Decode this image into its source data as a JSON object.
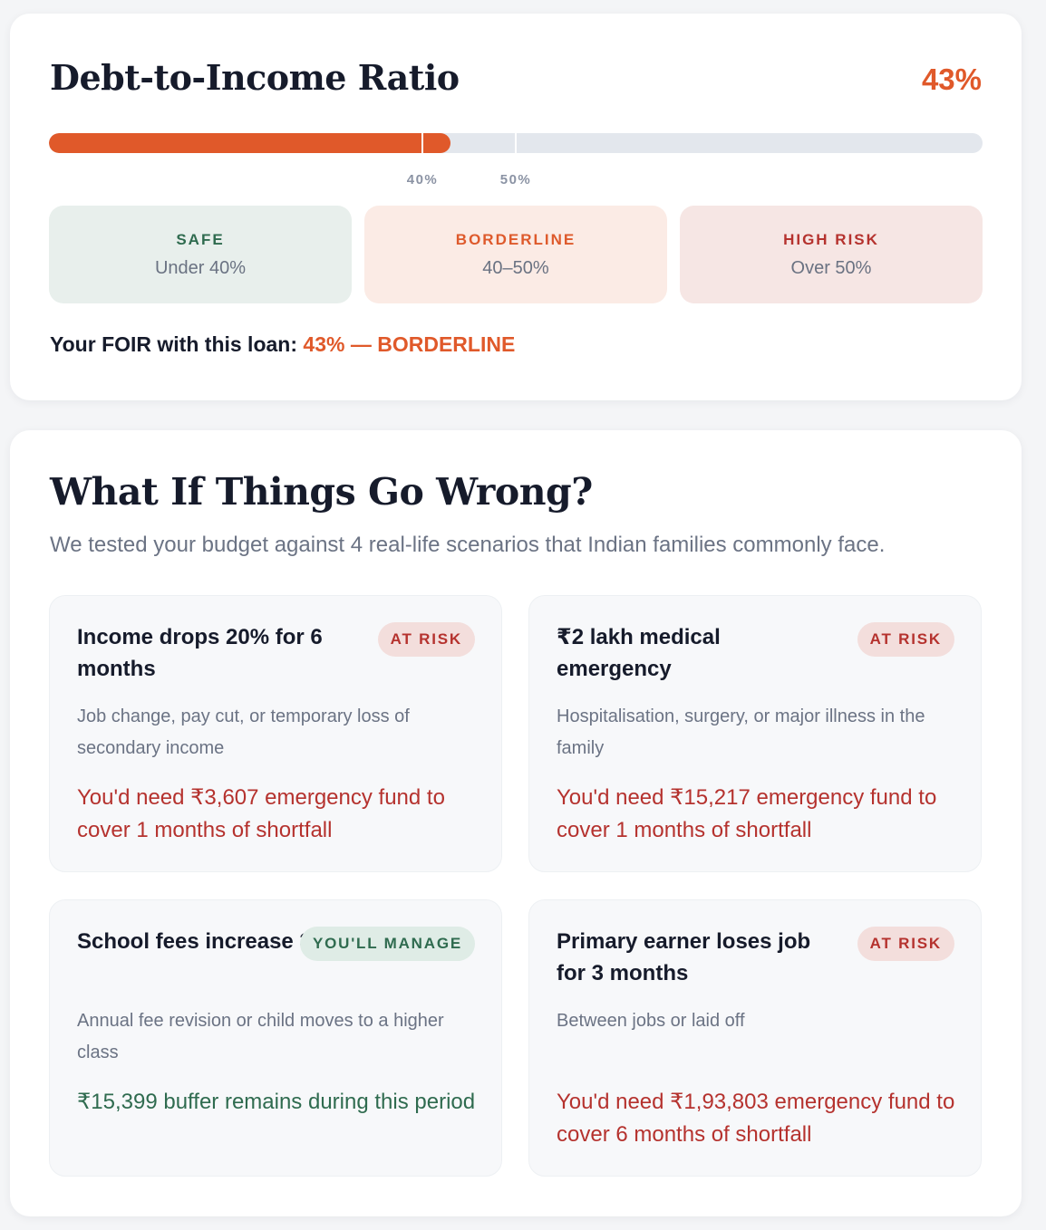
{
  "dti": {
    "title": "Debt-to-Income Ratio",
    "value_label": "43%",
    "progress_percent": 43,
    "markers": [
      {
        "label": "40%",
        "value": 40
      },
      {
        "label": "50%",
        "value": 50
      }
    ],
    "zones": [
      {
        "name": "SAFE",
        "range": "Under 40%"
      },
      {
        "name": "BORDERLINE",
        "range": "40–50%"
      },
      {
        "name": "HIGH RISK",
        "range": "Over 50%"
      }
    ],
    "foir_prefix": "Your FOIR with this loan:",
    "foir_value": "43% — BORDERLINE"
  },
  "what_if": {
    "title": "What If Things Go Wrong?",
    "subtitle": "We tested your budget against 4 real-life scenarios that Indian families commonly face.",
    "scenarios": [
      {
        "title": "Income drops 20% for 6 months",
        "badge": "AT RISK",
        "description": "Job change, pay cut, or temporary loss of secondary income",
        "result": "You'd need ₹3,607 emergency fund to cover 1 months of shortfall"
      },
      {
        "title": "₹2 lakh medical emergency",
        "badge": "AT RISK",
        "description": "Hospitalisation, surgery, or major illness in the family",
        "result": "You'd need ₹15,217 emergency fund to cover 1 months of shortfall"
      },
      {
        "title": "School fees increase 30%",
        "badge": "YOU'LL MANAGE",
        "description": "Annual fee revision or child moves to a higher class",
        "result": "₹15,399 buffer remains during this period"
      },
      {
        "title": "Primary earner loses job for 3 months",
        "badge": "AT RISK",
        "description": "Between jobs or laid off",
        "result": "You'd need ₹1,93,803 emergency fund to cover 6 months of shortfall"
      }
    ]
  },
  "colors": {
    "accent": "#e0592a",
    "safe": "#2f6b4f",
    "risk": "#b5322e"
  }
}
